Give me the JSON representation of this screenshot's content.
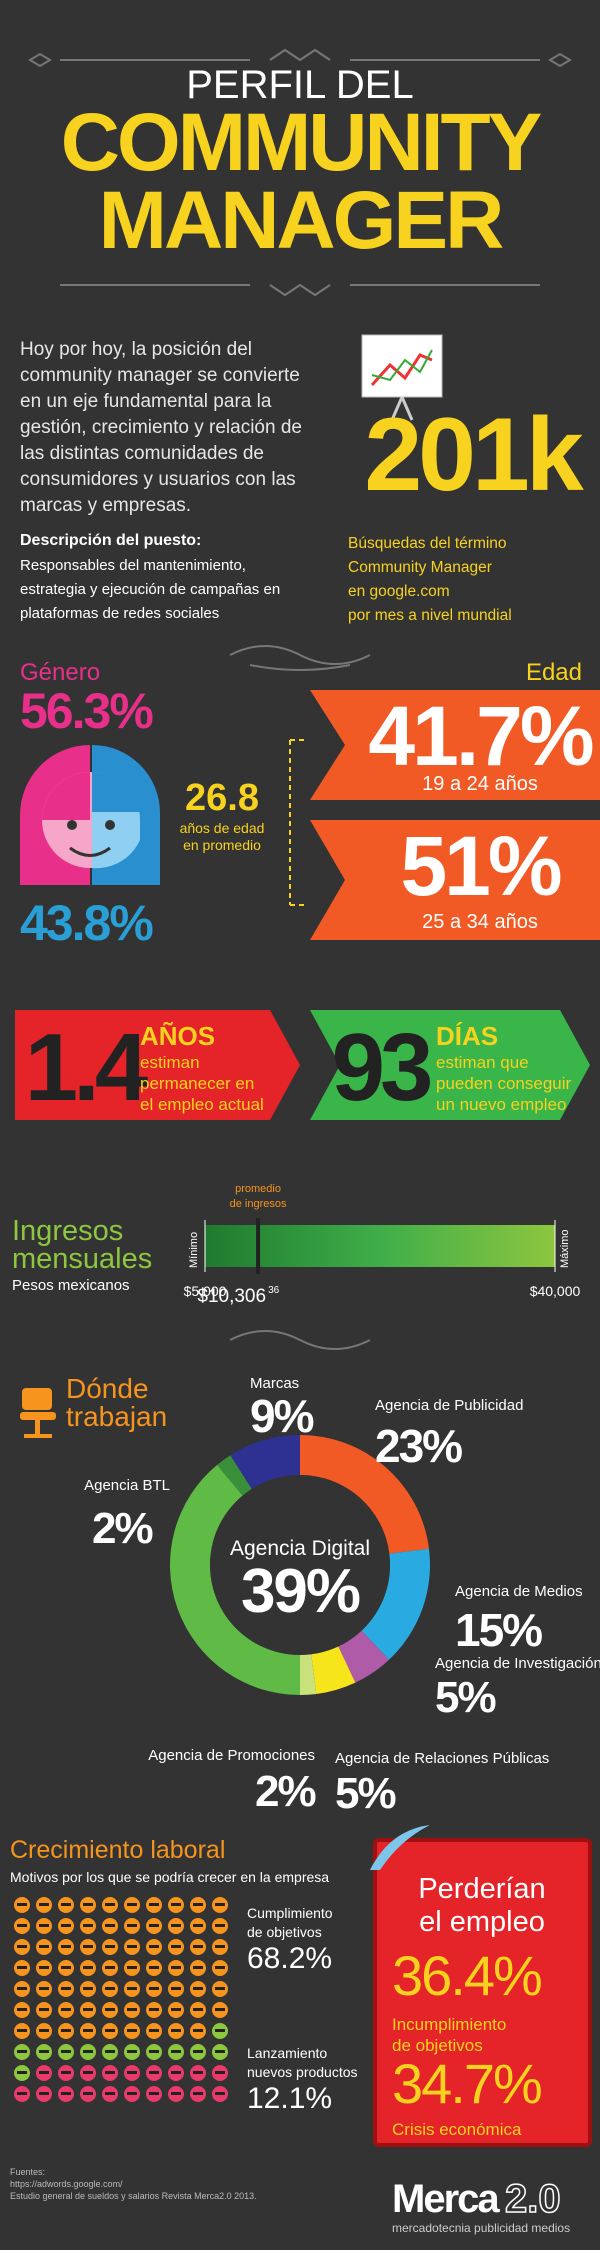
{
  "header": {
    "kicker": "PERFIL DEL",
    "title_lines": [
      "COMMUNITY",
      "MANAGER"
    ]
  },
  "intro": {
    "text_lines": [
      "Hoy por hoy, la posición del",
      "community manager se convierte",
      "en un eje fundamental para la",
      "gestión, crecimiento y relación de",
      "las distintas comunidades de",
      "consumidores y usuarios con las",
      "marcas y empresas."
    ],
    "desc_title": "Descripción del puesto:",
    "desc_lines": [
      "Responsables del mantenimiento,",
      "estrategia y ejecución de campañas en",
      "plataformas de redes sociales"
    ]
  },
  "searches": {
    "value": "201k",
    "caption_lines": [
      "Búsquedas del término",
      "Community Manager",
      "en google.com",
      "por mes a nivel mundial"
    ]
  },
  "gender": {
    "title": "Género",
    "female": "56.3%",
    "male": "43.8%"
  },
  "age": {
    "title": "Edad",
    "groups": [
      {
        "value": "41.7%",
        "label": "19 a 24 años"
      },
      {
        "value": "51%",
        "label": "25 a 34 años"
      }
    ],
    "average": "26.8",
    "average_lines": [
      "años de edad",
      "en promedio"
    ]
  },
  "tenure": [
    {
      "value": "1.4",
      "unit": "AÑOS",
      "lines": [
        "estiman",
        "permanecer en",
        "el empleo actual"
      ]
    },
    {
      "value": "93",
      "unit": "DÍAS",
      "lines": [
        "estiman que",
        "pueden conseguir",
        "un nuevo empleo"
      ]
    }
  ],
  "income": {
    "title_lines": [
      "Ingresos",
      "mensuales"
    ],
    "subtitle": "Pesos mexicanos",
    "min_label": "Mínimo",
    "max_label": "Máximo",
    "average_caption": [
      "promedio",
      "de ingresos"
    ],
    "min": {
      "value": 5000,
      "label": "$5,000"
    },
    "max": {
      "value": 40000,
      "label": "$40,000"
    },
    "average": {
      "value": 10306.36,
      "label": "$10,306",
      "cents": "36"
    }
  },
  "workplaces": {
    "title_lines": [
      "Dónde",
      "trabajan"
    ],
    "items": [
      {
        "label": "Agencia de Publicidad",
        "value": 23,
        "value_label": "23%",
        "color": "#f15a24"
      },
      {
        "label": "Agencia de Medios",
        "value": 15,
        "value_label": "15%",
        "color": "#29abe2"
      },
      {
        "label": "Agencia de Investigación",
        "value": 5,
        "value_label": "5%",
        "color": "#b05ba8"
      },
      {
        "label": "Agencia de Relaciones Públicas",
        "value": 5,
        "value_label": "5%",
        "color": "#f7e51c"
      },
      {
        "label": "Agencia de Promociones",
        "value": 2,
        "value_label": "2%",
        "color": "#c9e27c"
      },
      {
        "label": "Agencia Digital",
        "value": 39,
        "value_label": "39%",
        "color": "#5fbb46"
      },
      {
        "label": "Agencia BTL",
        "value": 2,
        "value_label": "2%",
        "color": "#3a8f3a"
      },
      {
        "label": "Marcas",
        "value": 9,
        "value_label": "9%",
        "color": "#2e3192"
      }
    ]
  },
  "growth": {
    "title": "Crecimiento laboral",
    "subtitle": "Motivos por los que se podría crecer en la empresa",
    "items": [
      {
        "lines": [
          "Cumplimiento",
          "de objetivos"
        ],
        "value": 68.2,
        "value_label": "68.2%",
        "color": "#f7941d"
      },
      {
        "lines": [
          "Lanzamiento",
          "nuevos productos"
        ],
        "value": 12.1,
        "value_label": "12.1%",
        "color": "#8dc63f"
      }
    ]
  },
  "job_loss": {
    "title_lines": [
      "Perderían",
      "el empleo"
    ],
    "items": [
      {
        "value": "36.4%",
        "lines": [
          "Incumplimiento",
          "de objetivos"
        ]
      },
      {
        "value": "34.7%",
        "lines": [
          "Crisis económica"
        ]
      }
    ]
  },
  "footer": {
    "sources": [
      "Fuentes:",
      "https://adwords.google.com/",
      "Estudio general de sueldos y salarios Revista Merca2.0 2013."
    ],
    "logo": "Merca",
    "logo_suffix": "2.0",
    "tagline": "mercadotecnia publicidad medios"
  }
}
